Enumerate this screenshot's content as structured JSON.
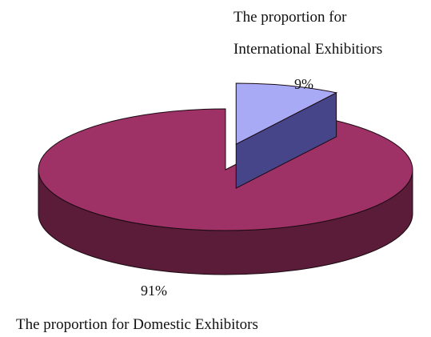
{
  "chart_data": {
    "type": "pie",
    "style": "3d-exploded",
    "slices": [
      {
        "name_line1": "The proportion for",
        "name_line2": "International Exhibitiors",
        "value": 9,
        "value_label": "9%",
        "color": "#a9aaf5",
        "side_color": "#46458a",
        "exploded": true
      },
      {
        "name": "The proportion for Domestic Exhibitors",
        "value": 91,
        "value_label": "91%",
        "color": "#9e3166",
        "side_color": "#5a1c38",
        "exploded": false
      }
    ],
    "outline_color": "#1a0a12"
  }
}
